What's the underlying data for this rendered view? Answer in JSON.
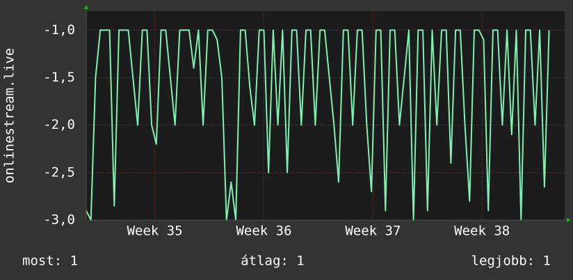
{
  "chart_data": {
    "type": "line",
    "y_label": "onlinestream.live",
    "x": [
      0,
      0.3,
      0.6,
      0.9,
      1.2,
      1.5,
      1.8,
      2.1,
      2.4,
      2.7,
      3,
      3.3,
      3.6,
      3.9,
      4.2,
      4.5,
      4.8,
      5.1,
      5.4,
      5.7,
      6,
      6.3,
      6.6,
      6.9,
      7.2,
      7.5,
      7.8,
      8.1,
      8.4,
      8.7,
      9,
      9.3,
      9.6,
      9.9,
      10.2,
      10.5,
      10.8,
      11.1,
      11.4,
      11.7,
      12,
      12.3,
      12.6,
      12.9,
      13.2,
      13.5,
      13.8,
      14.1,
      14.4,
      14.7,
      15,
      15.3,
      15.6,
      15.9,
      16.2,
      16.5,
      16.8,
      17.1,
      17.4,
      17.7,
      18,
      18.3,
      18.6,
      18.9,
      19.2,
      19.5,
      19.8,
      20.1,
      20.4,
      20.7,
      21,
      21.3,
      21.6,
      21.9,
      22.2,
      22.5,
      22.8,
      23.1,
      23.4,
      23.7,
      24,
      24.3,
      24.6,
      24.9,
      25.2,
      25.5,
      25.8,
      26.1,
      26.4,
      26.7,
      27,
      27.3,
      27.6,
      27.9,
      28.2,
      28.5,
      28.8,
      29.1,
      29.4,
      29.7
    ],
    "series": [
      {
        "color": "#7ef0b4",
        "values": [
          -2.9,
          -3.0,
          -1.5,
          -1.0,
          -1.0,
          -1.0,
          -2.85,
          -1.0,
          -1.0,
          -1.0,
          -1.5,
          -2.0,
          -1.0,
          -1.0,
          -2.0,
          -2.2,
          -1.0,
          -1.0,
          -1.5,
          -2.0,
          -1.0,
          -1.0,
          -1.0,
          -1.4,
          -1.0,
          -2.0,
          -1.0,
          -1.0,
          -1.1,
          -1.5,
          -3.0,
          -2.6,
          -3.0,
          -1.0,
          -1.0,
          -1.6,
          -2.0,
          -1.0,
          -1.0,
          -2.5,
          -1.0,
          -2.0,
          -1.0,
          -2.5,
          -1.0,
          -1.0,
          -2.0,
          -1.0,
          -1.0,
          -2.0,
          -1.0,
          -1.0,
          -1.5,
          -2.0,
          -2.6,
          -1.0,
          -1.0,
          -2.0,
          -1.0,
          -1.0,
          -2.0,
          -2.7,
          -1.0,
          -1.0,
          -2.9,
          -1.0,
          -1.0,
          -2.0,
          -1.5,
          -1.0,
          -3.0,
          -1.0,
          -1.0,
          -2.9,
          -1.0,
          -2.0,
          -1.0,
          -1.0,
          -2.4,
          -1.0,
          -1.0,
          -2.0,
          -2.8,
          -1.0,
          -1.0,
          -1.1,
          -2.9,
          -1.0,
          -1.0,
          -2.0,
          -1.0,
          -2.1,
          -1.0,
          -3.0,
          -1.0,
          -1.0,
          -2.0,
          -1.0,
          -2.65,
          -1.0
        ]
      }
    ],
    "xlim": [
      0,
      30.7
    ],
    "xticks": [
      {
        "value": 4.4,
        "label": "Week 35"
      },
      {
        "value": 11.4,
        "label": "Week 36"
      },
      {
        "value": 18.4,
        "label": "Week 37"
      },
      {
        "value": 25.4,
        "label": "Week 38"
      }
    ],
    "ylim": [
      -3.0,
      -0.8
    ],
    "yticks": [
      {
        "value": -3.0,
        "label": "-3,0"
      },
      {
        "value": -2.5,
        "label": "-2,5"
      },
      {
        "value": -2.0,
        "label": "-2,0"
      },
      {
        "value": -1.5,
        "label": "-1,5"
      },
      {
        "value": -1.0,
        "label": "-1,0"
      }
    ],
    "grid": true,
    "footer": [
      "most: 1",
      "átlag: 1",
      "legjobb: 1"
    ]
  }
}
